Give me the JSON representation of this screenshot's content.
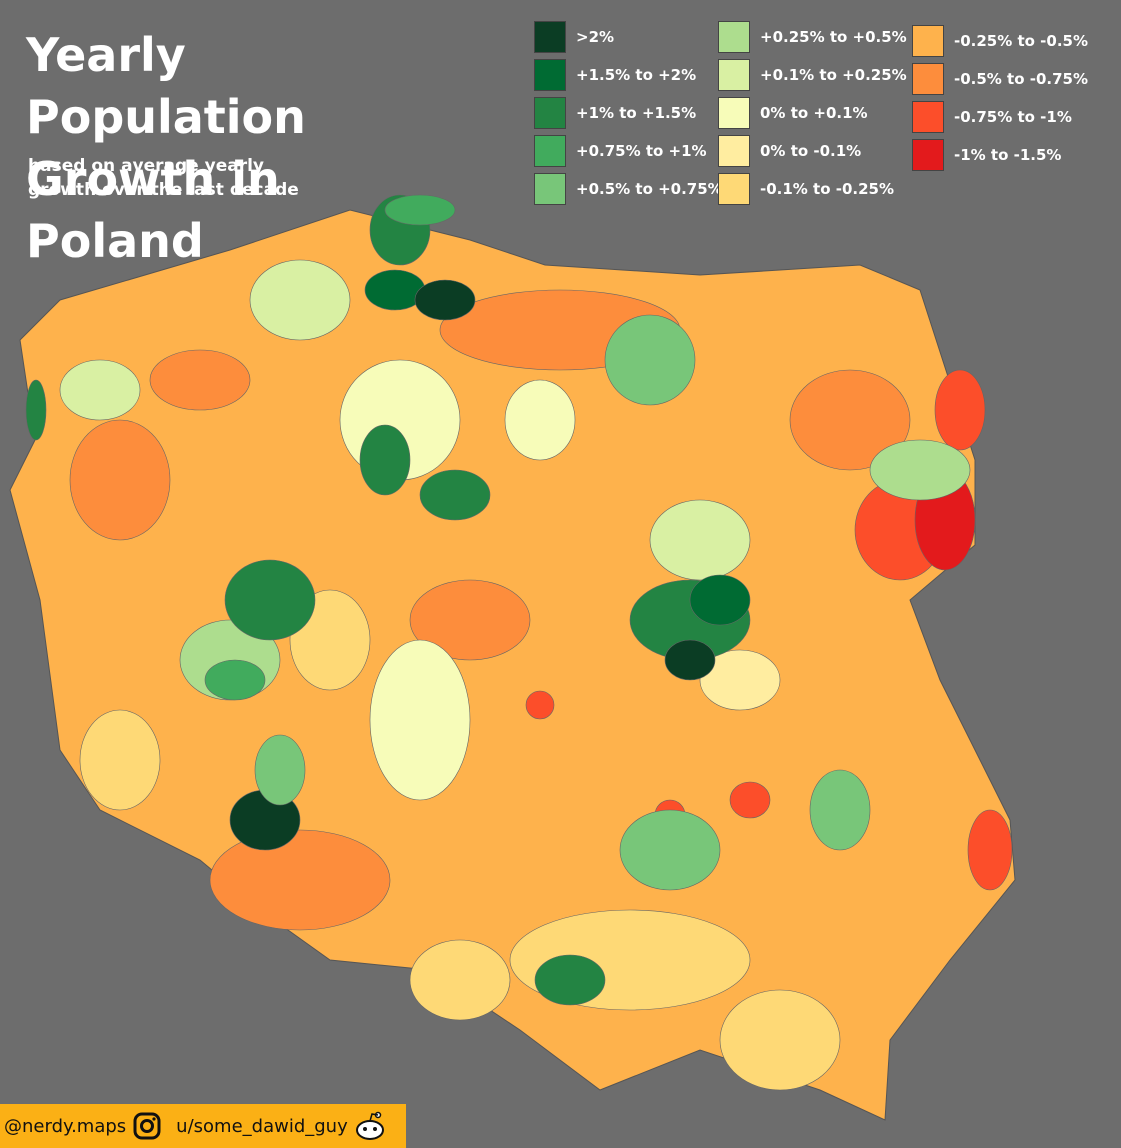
{
  "title": "Yearly Population Growth in Poland",
  "subtitle": "based on average yearly growth over the last decade",
  "legend": [
    {
      "label": ">2%",
      "color": "#0b3d24"
    },
    {
      "label": "+1.5% to +2%",
      "color": "#006b33"
    },
    {
      "label": "+1% to +1.5%",
      "color": "#238443"
    },
    {
      "label": "+0.75% to +1%",
      "color": "#41ab5d"
    },
    {
      "label": "+0.5% to +0.75%",
      "color": "#78c679"
    },
    {
      "label": "+0.25% to +0.5%",
      "color": "#addd8e"
    },
    {
      "label": "+0.1% to +0.25%",
      "color": "#d9f0a3"
    },
    {
      "label": "0% to +0.1%",
      "color": "#f7fcb9"
    },
    {
      "label": "0% to -0.1%",
      "color": "#ffeda0"
    },
    {
      "label": "-0.1% to -0.25%",
      "color": "#fed976"
    },
    {
      "label": "-0.25% to -0.5%",
      "color": "#feb24c"
    },
    {
      "label": "-0.5% to -0.75%",
      "color": "#fd8d3c"
    },
    {
      "label": "-0.75% to -1%",
      "color": "#fc4e2a"
    },
    {
      "label": "-1% to -1.5%",
      "color": "#e31a1c"
    }
  ],
  "footer": {
    "instagram": "@nerdy.maps",
    "reddit": "u/some_dawid_guy"
  }
}
